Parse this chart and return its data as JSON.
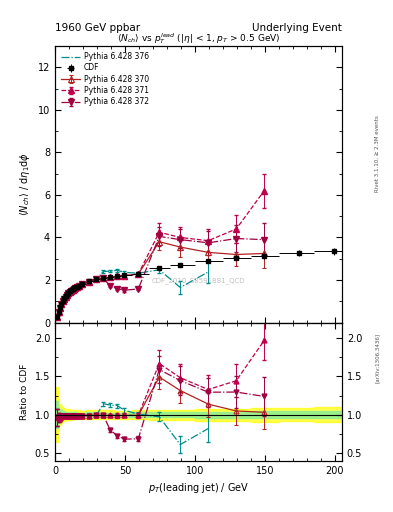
{
  "title_top": "1960 GeV ppbar",
  "title_right": "Underlying Event",
  "plot_title": "$\\langle N_{ch}\\rangle$ vs $p_T^{lead}$ ($|\\eta|$ < 1, $p_T$ > 0.5 GeV)",
  "ylabel_main": "$\\langle N_{ch}\\rangle$ / d$\\eta_1$d$\\phi$",
  "ylabel_ratio": "Ratio to CDF",
  "xlabel": "$p_T$(leading jet) / GeV",
  "watermark": "CDF_2010_S8591881_QCD",
  "cdf_x": [
    1.5,
    2.5,
    3.5,
    4.5,
    5.5,
    6.5,
    7.5,
    8.5,
    9.5,
    10.5,
    11.5,
    12.5,
    13.5,
    14.5,
    15.5,
    17.0,
    19.5,
    24.5,
    29.5,
    34.5,
    39.5,
    44.5,
    49.5,
    59.5,
    74.5,
    89.5,
    109.5,
    129.5,
    149.5,
    174.5,
    199.5
  ],
  "cdf_y": [
    0.28,
    0.5,
    0.72,
    0.88,
    1.02,
    1.14,
    1.24,
    1.34,
    1.41,
    1.47,
    1.52,
    1.57,
    1.61,
    1.65,
    1.68,
    1.74,
    1.82,
    1.95,
    2.05,
    2.1,
    2.15,
    2.2,
    2.23,
    2.3,
    2.55,
    2.7,
    2.9,
    3.05,
    3.15,
    3.25,
    3.35
  ],
  "cdf_yerr": [
    0.05,
    0.05,
    0.05,
    0.05,
    0.05,
    0.05,
    0.05,
    0.05,
    0.05,
    0.05,
    0.05,
    0.05,
    0.05,
    0.05,
    0.05,
    0.05,
    0.05,
    0.06,
    0.06,
    0.06,
    0.06,
    0.06,
    0.06,
    0.07,
    0.08,
    0.09,
    0.11,
    0.12,
    0.14,
    0.14,
    0.16
  ],
  "cdf_xlo": [
    1.0,
    2.0,
    3.0,
    4.0,
    5.0,
    6.0,
    7.0,
    8.0,
    9.0,
    10.0,
    11.0,
    12.0,
    13.0,
    14.0,
    15.0,
    16.0,
    18.0,
    22.0,
    27.0,
    32.0,
    37.0,
    42.0,
    47.0,
    55.0,
    67.0,
    82.0,
    100.0,
    120.0,
    140.0,
    160.0,
    185.0
  ],
  "cdf_xhi": [
    2.0,
    3.0,
    4.0,
    5.0,
    6.0,
    7.0,
    8.0,
    9.0,
    10.0,
    11.0,
    12.0,
    13.0,
    14.0,
    15.0,
    16.0,
    18.0,
    22.0,
    27.0,
    32.0,
    37.0,
    42.0,
    47.0,
    55.0,
    67.0,
    82.0,
    100.0,
    120.0,
    140.0,
    160.0,
    185.0,
    215.0
  ],
  "p370_x": [
    1.5,
    2.5,
    3.5,
    4.5,
    5.5,
    6.5,
    7.5,
    8.5,
    9.5,
    10.5,
    11.5,
    12.5,
    13.5,
    14.5,
    15.5,
    17.0,
    19.5,
    24.5,
    29.5,
    34.5,
    39.5,
    44.5,
    49.5,
    59.5,
    74.5,
    89.5,
    109.5,
    129.5,
    149.5
  ],
  "p370_y": [
    0.27,
    0.48,
    0.69,
    0.86,
    1.0,
    1.12,
    1.22,
    1.31,
    1.38,
    1.45,
    1.5,
    1.55,
    1.59,
    1.63,
    1.66,
    1.72,
    1.8,
    1.93,
    2.03,
    2.08,
    2.13,
    2.18,
    2.21,
    2.28,
    3.8,
    3.55,
    3.3,
    3.2,
    3.25
  ],
  "p370_yerr": [
    0.03,
    0.03,
    0.03,
    0.03,
    0.03,
    0.03,
    0.03,
    0.03,
    0.03,
    0.03,
    0.03,
    0.03,
    0.03,
    0.03,
    0.03,
    0.04,
    0.04,
    0.05,
    0.05,
    0.05,
    0.05,
    0.05,
    0.05,
    0.06,
    0.4,
    0.45,
    0.5,
    0.55,
    0.7
  ],
  "p371_x": [
    1.5,
    2.5,
    3.5,
    4.5,
    5.5,
    6.5,
    7.5,
    8.5,
    9.5,
    10.5,
    11.5,
    12.5,
    13.5,
    14.5,
    15.5,
    17.0,
    19.5,
    24.5,
    29.5,
    34.5,
    39.5,
    44.5,
    49.5,
    59.5,
    74.5,
    89.5,
    109.5,
    129.5,
    149.5
  ],
  "p371_y": [
    0.27,
    0.48,
    0.69,
    0.86,
    1.0,
    1.12,
    1.22,
    1.31,
    1.38,
    1.45,
    1.5,
    1.55,
    1.59,
    1.63,
    1.66,
    1.72,
    1.8,
    1.93,
    2.03,
    2.08,
    2.13,
    2.18,
    2.21,
    2.28,
    4.25,
    4.0,
    3.85,
    4.4,
    6.2
  ],
  "p371_yerr": [
    0.03,
    0.03,
    0.03,
    0.03,
    0.03,
    0.03,
    0.03,
    0.03,
    0.03,
    0.03,
    0.03,
    0.03,
    0.03,
    0.03,
    0.03,
    0.04,
    0.04,
    0.05,
    0.05,
    0.05,
    0.05,
    0.06,
    0.06,
    0.07,
    0.45,
    0.5,
    0.55,
    0.65,
    0.8
  ],
  "p372_x": [
    1.5,
    2.5,
    3.5,
    4.5,
    5.5,
    6.5,
    7.5,
    8.5,
    9.5,
    10.5,
    11.5,
    12.5,
    13.5,
    14.5,
    15.5,
    17.0,
    19.5,
    24.5,
    29.5,
    34.5,
    39.5,
    44.5,
    49.5,
    59.5,
    74.5,
    89.5,
    109.5,
    129.5,
    149.5
  ],
  "p372_y": [
    0.27,
    0.48,
    0.69,
    0.86,
    1.0,
    1.12,
    1.22,
    1.31,
    1.38,
    1.45,
    1.5,
    1.55,
    1.59,
    1.63,
    1.66,
    1.72,
    1.8,
    1.93,
    2.03,
    2.08,
    1.72,
    1.6,
    1.52,
    1.58,
    4.05,
    3.9,
    3.75,
    3.95,
    3.9
  ],
  "p372_yerr": [
    0.03,
    0.03,
    0.03,
    0.03,
    0.03,
    0.03,
    0.03,
    0.03,
    0.03,
    0.03,
    0.03,
    0.03,
    0.03,
    0.03,
    0.03,
    0.04,
    0.04,
    0.05,
    0.05,
    0.05,
    0.05,
    0.06,
    0.06,
    0.07,
    0.45,
    0.5,
    0.55,
    0.65,
    0.8
  ],
  "p376_x": [
    1.5,
    2.5,
    3.5,
    4.5,
    5.5,
    6.5,
    7.5,
    8.5,
    9.5,
    10.5,
    11.5,
    12.5,
    13.5,
    14.5,
    15.5,
    17.0,
    19.5,
    24.5,
    29.5,
    34.5,
    39.5,
    44.5,
    49.5,
    59.5,
    74.5,
    89.5,
    109.5
  ],
  "p376_y": [
    0.27,
    0.48,
    0.69,
    0.86,
    1.0,
    1.12,
    1.22,
    1.31,
    1.38,
    1.45,
    1.5,
    1.55,
    1.59,
    1.63,
    1.66,
    1.72,
    1.8,
    1.93,
    2.03,
    2.4,
    2.42,
    2.46,
    2.36,
    2.32,
    2.48,
    1.65,
    2.38
  ],
  "p376_yerr": [
    0.03,
    0.03,
    0.03,
    0.03,
    0.03,
    0.03,
    0.03,
    0.03,
    0.03,
    0.03,
    0.03,
    0.03,
    0.03,
    0.03,
    0.03,
    0.04,
    0.04,
    0.05,
    0.05,
    0.06,
    0.06,
    0.06,
    0.07,
    0.07,
    0.15,
    0.3,
    0.5
  ],
  "color_370": "#b22222",
  "color_371": "#c0004a",
  "color_372": "#a00040",
  "color_376": "#008b8b",
  "color_cdf": "#000000",
  "ylim_main": [
    0,
    13
  ],
  "ylim_ratio": [
    0.4,
    2.2
  ],
  "xlim": [
    0,
    205
  ]
}
